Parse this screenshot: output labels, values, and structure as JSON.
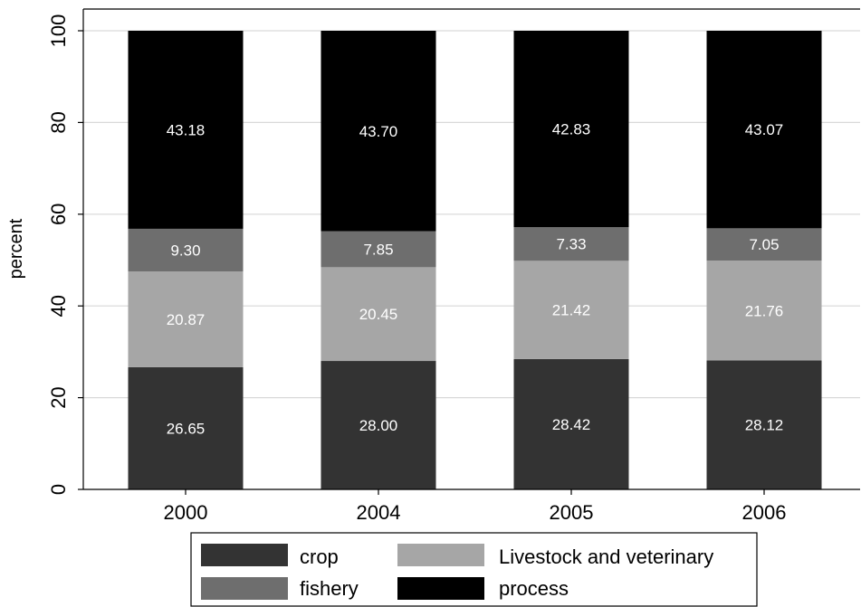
{
  "chart_data": {
    "type": "bar",
    "stacked": true,
    "normalized": true,
    "title": "",
    "xlabel": "",
    "ylabel": "percent",
    "ylim": [
      0,
      100
    ],
    "yticks": [
      0,
      20,
      40,
      60,
      80,
      100
    ],
    "grid": true,
    "legend_position": "bottom",
    "categories": [
      "2000",
      "2004",
      "2005",
      "2006"
    ],
    "series": [
      {
        "name": "crop",
        "color": "#333333",
        "values": [
          26.65,
          28.0,
          28.42,
          28.12
        ],
        "labels": [
          "26.65",
          "28.00",
          "28.42",
          "28.12"
        ]
      },
      {
        "name": "Livestock and veterinary",
        "color": "#a6a6a6",
        "values": [
          20.87,
          20.45,
          21.42,
          21.76
        ],
        "labels": [
          "20.87",
          "20.45",
          "21.42",
          "21.76"
        ]
      },
      {
        "name": "fishery",
        "color": "#6e6e6e",
        "values": [
          9.3,
          7.85,
          7.33,
          7.05
        ],
        "labels": [
          "9.30",
          "7.85",
          "7.33",
          "7.05"
        ]
      },
      {
        "name": "process",
        "color": "#000000",
        "values": [
          43.18,
          43.7,
          42.83,
          43.07
        ],
        "labels": [
          "43.18",
          "43.70",
          "42.83",
          "43.07"
        ]
      }
    ],
    "legend_order": [
      "crop",
      "Livestock and veterinary",
      "fishery",
      "process"
    ]
  }
}
